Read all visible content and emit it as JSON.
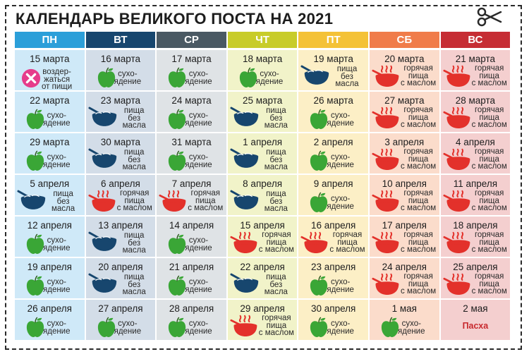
{
  "title": "КАЛЕНДАРЬ ВЕЛИКОГО ПОСТА НА 2021",
  "days": [
    {
      "label": "ПН",
      "color": "#2b9fd9",
      "bg": "#cfe9f8"
    },
    {
      "label": "ВТ",
      "color": "#17466e",
      "bg": "#d3dde8"
    },
    {
      "label": "СР",
      "color": "#4a5963",
      "bg": "#dfe3e6"
    },
    {
      "label": "ЧТ",
      "color": "#c8cc2a",
      "bg": "#f1f3c9"
    },
    {
      "label": "ПТ",
      "color": "#f4c237",
      "bg": "#fcefc6"
    },
    {
      "label": "СБ",
      "color": "#f07c4a",
      "bg": "#fbdccb"
    },
    {
      "label": "ВС",
      "color": "#c62d34",
      "bg": "#f4cfcf"
    }
  ],
  "labels": {
    "abstain": [
      "воздер-",
      "жаться",
      "от пищи"
    ],
    "dry": [
      "сухо-",
      "ядение"
    ],
    "no_oil": [
      "пища",
      "без",
      "масла"
    ],
    "hot_oil": [
      "горячая",
      "пища",
      "с маслом"
    ]
  },
  "weeks": [
    [
      {
        "date": "15 марта",
        "type": "abstain"
      },
      {
        "date": "16 марта",
        "type": "dry"
      },
      {
        "date": "17 марта",
        "type": "dry"
      },
      {
        "date": "18 марта",
        "type": "dry"
      },
      {
        "date": "19 марта",
        "type": "no_oil"
      },
      {
        "date": "20 марта",
        "type": "hot_oil"
      },
      {
        "date": "21 марта",
        "type": "hot_oil"
      }
    ],
    [
      {
        "date": "22 марта",
        "type": "dry"
      },
      {
        "date": "23 марта",
        "type": "no_oil"
      },
      {
        "date": "24 марта",
        "type": "dry"
      },
      {
        "date": "25 марта",
        "type": "no_oil"
      },
      {
        "date": "26 марта",
        "type": "dry"
      },
      {
        "date": "27 марта",
        "type": "hot_oil"
      },
      {
        "date": "28 марта",
        "type": "hot_oil"
      }
    ],
    [
      {
        "date": "29 марта",
        "type": "dry"
      },
      {
        "date": "30 марта",
        "type": "no_oil"
      },
      {
        "date": "31 марта",
        "type": "dry"
      },
      {
        "date": "1 апреля",
        "type": "no_oil"
      },
      {
        "date": "2 апреля",
        "type": "dry"
      },
      {
        "date": "3 апреля",
        "type": "hot_oil"
      },
      {
        "date": "4 апреля",
        "type": "hot_oil"
      }
    ],
    [
      {
        "date": "5 апреля",
        "type": "no_oil"
      },
      {
        "date": "6 апреля",
        "type": "hot_oil"
      },
      {
        "date": "7 апреля",
        "type": "hot_oil"
      },
      {
        "date": "8 апреля",
        "type": "no_oil"
      },
      {
        "date": "9 апреля",
        "type": "dry"
      },
      {
        "date": "10 апреля",
        "type": "hot_oil"
      },
      {
        "date": "11 апреля",
        "type": "hot_oil"
      }
    ],
    [
      {
        "date": "12 апреля",
        "type": "dry"
      },
      {
        "date": "13 апреля",
        "type": "no_oil"
      },
      {
        "date": "14 апреля",
        "type": "dry"
      },
      {
        "date": "15 апреля",
        "type": "hot_oil"
      },
      {
        "date": "16 апреля",
        "type": "hot_oil"
      },
      {
        "date": "17 апреля",
        "type": "hot_oil"
      },
      {
        "date": "18 апреля",
        "type": "hot_oil"
      }
    ],
    [
      {
        "date": "19 апреля",
        "type": "dry"
      },
      {
        "date": "20 апреля",
        "type": "no_oil"
      },
      {
        "date": "21 апреля",
        "type": "dry"
      },
      {
        "date": "22 апреля",
        "type": "no_oil"
      },
      {
        "date": "23 апреля",
        "type": "dry"
      },
      {
        "date": "24 апреля",
        "type": "hot_oil"
      },
      {
        "date": "25 апреля",
        "type": "hot_oil"
      }
    ],
    [
      {
        "date": "26 апреля",
        "type": "dry"
      },
      {
        "date": "27 апреля",
        "type": "dry"
      },
      {
        "date": "28 апреля",
        "type": "dry"
      },
      {
        "date": "29 апреля",
        "type": "hot_oil"
      },
      {
        "date": "30 апреля",
        "type": "dry"
      },
      {
        "date": "1 мая",
        "type": "dry"
      },
      {
        "date": "2 мая",
        "type": "easter",
        "label": "Пасха"
      }
    ]
  ],
  "icon_colors": {
    "apple": "#3aa636",
    "bowl": "#17466e",
    "hot_bowl": "#e3312b",
    "abstain": "#e63c8b"
  }
}
